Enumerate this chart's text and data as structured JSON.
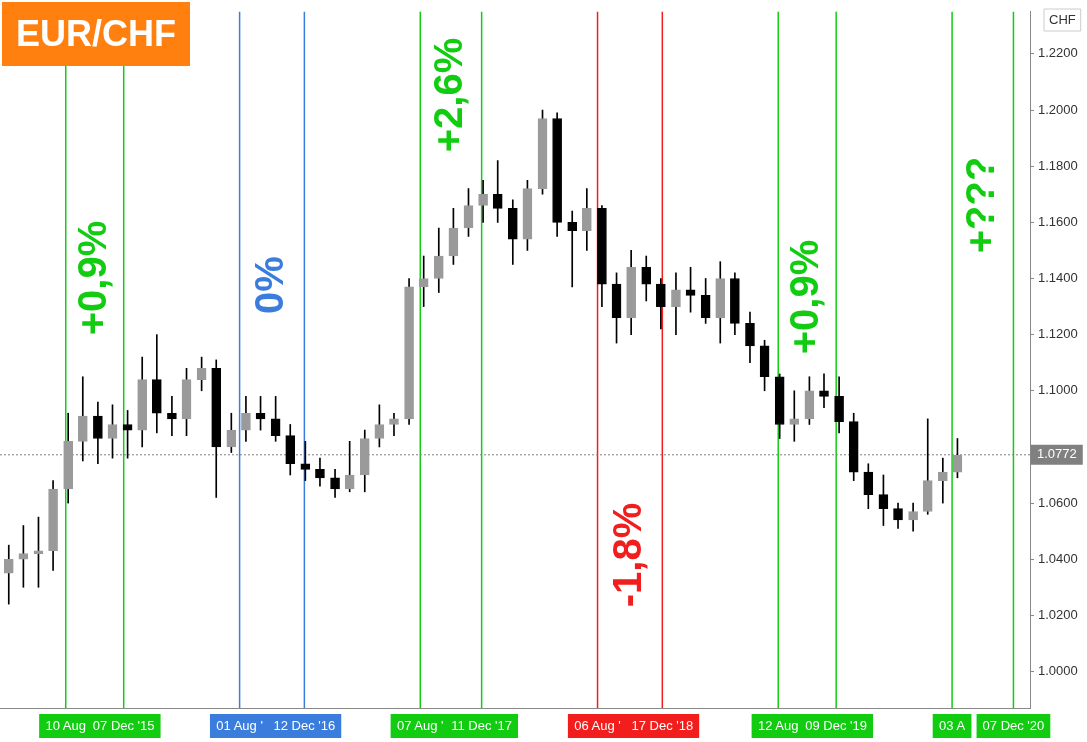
{
  "chart_data": {
    "type": "candlestick",
    "title": "EUR/CHF",
    "ylabel": "CHF",
    "color": "#000000",
    "colors": [
      "#9a9a9a",
      "#9a9a9a",
      "#9a9a9a",
      "#9a9a9a",
      "#9a9a9a",
      "#9a9a9a",
      "#000000",
      "#9a9a9a",
      "#000000",
      "#9a9a9a",
      "#000000",
      "#000000",
      "#9a9a9a",
      "#9a9a9a",
      "#000000",
      "#9a9a9a",
      "#9a9a9a",
      "#000000",
      "#000000",
      "#000000",
      "#000000",
      "#000000",
      "#000000",
      "#9a9a9a",
      "#9a9a9a",
      "#9a9a9a",
      "#9a9a9a",
      "#9a9a9a",
      "#9a9a9a",
      "#9a9a9a",
      "#9a9a9a",
      "#9a9a9a",
      "#9a9a9a",
      "#000000",
      "#000000",
      "#9a9a9a",
      "#9a9a9a",
      "#000000",
      "#000000",
      "#9a9a9a",
      "#000000",
      "#000000",
      "#9a9a9a",
      "#000000",
      "#000000",
      "#9a9a9a",
      "#000000",
      "#000000",
      "#9a9a9a",
      "#000000",
      "#000000",
      "#000000",
      "#000000",
      "#9a9a9a",
      "#9a9a9a",
      "#000000",
      "#000000",
      "#000000",
      "#000000",
      "#000000",
      "#000000",
      "#9a9a9a",
      "#9a9a9a",
      "#9a9a9a",
      "#9a9a9a"
    ],
    "x": [
      "2015-04-15",
      "2015-05-15",
      "2015-06-15",
      "2015-07-15",
      "2015-08-15",
      "2015-09-14",
      "2015-10-15",
      "2015-11-14",
      "2015-12-15",
      "2016-01-14",
      "2016-02-13",
      "2016-03-15",
      "2016-04-14",
      "2016-05-15",
      "2016-06-14",
      "2016-07-15",
      "2016-08-14",
      "2016-09-13",
      "2016-10-14",
      "2016-11-13",
      "2016-12-14",
      "2017-01-13",
      "2017-02-13",
      "2017-03-15",
      "2017-04-15",
      "2017-05-15",
      "2017-06-14",
      "2017-07-15",
      "2017-08-14",
      "2017-09-14",
      "2017-10-14",
      "2017-11-14",
      "2017-12-14",
      "2018-01-13",
      "2018-02-13",
      "2018-03-15",
      "2018-04-15",
      "2018-05-15",
      "2018-06-15",
      "2018-07-15",
      "2018-08-15",
      "2018-09-14",
      "2018-10-14",
      "2018-11-14",
      "2018-12-14",
      "2019-01-14",
      "2019-02-13",
      "2019-03-16",
      "2019-04-15",
      "2019-05-15",
      "2019-06-15",
      "2019-07-15",
      "2019-08-15",
      "2019-09-14",
      "2019-10-15",
      "2019-11-14",
      "2019-12-15",
      "2020-01-14",
      "2020-02-13",
      "2020-03-15",
      "2020-04-14",
      "2020-05-15",
      "2020-06-14",
      "2020-07-15",
      "2020-08-14"
    ],
    "ohlc": [
      [
        1.035,
        1.045,
        1.024,
        1.04
      ],
      [
        1.04,
        1.052,
        1.03,
        1.042
      ],
      [
        1.042,
        1.055,
        1.03,
        1.043
      ],
      [
        1.043,
        1.068,
        1.036,
        1.065
      ],
      [
        1.065,
        1.092,
        1.06,
        1.082
      ],
      [
        1.082,
        1.105,
        1.075,
        1.091
      ],
      [
        1.091,
        1.096,
        1.074,
        1.083
      ],
      [
        1.083,
        1.095,
        1.076,
        1.088
      ],
      [
        1.088,
        1.093,
        1.076,
        1.086
      ],
      [
        1.086,
        1.112,
        1.08,
        1.104
      ],
      [
        1.104,
        1.12,
        1.085,
        1.092
      ],
      [
        1.092,
        1.098,
        1.084,
        1.09
      ],
      [
        1.09,
        1.108,
        1.084,
        1.104
      ],
      [
        1.104,
        1.112,
        1.1,
        1.108
      ],
      [
        1.108,
        1.111,
        1.062,
        1.08
      ],
      [
        1.08,
        1.092,
        1.078,
        1.086
      ],
      [
        1.086,
        1.098,
        1.082,
        1.092
      ],
      [
        1.092,
        1.098,
        1.086,
        1.09
      ],
      [
        1.09,
        1.098,
        1.082,
        1.084
      ],
      [
        1.084,
        1.088,
        1.07,
        1.074
      ],
      [
        1.074,
        1.082,
        1.068,
        1.072
      ],
      [
        1.072,
        1.076,
        1.066,
        1.069
      ],
      [
        1.069,
        1.072,
        1.062,
        1.065
      ],
      [
        1.065,
        1.082,
        1.064,
        1.07
      ],
      [
        1.07,
        1.086,
        1.064,
        1.083
      ],
      [
        1.083,
        1.095,
        1.08,
        1.088
      ],
      [
        1.088,
        1.092,
        1.084,
        1.09
      ],
      [
        1.09,
        1.14,
        1.088,
        1.137
      ],
      [
        1.137,
        1.148,
        1.13,
        1.14
      ],
      [
        1.14,
        1.158,
        1.135,
        1.148
      ],
      [
        1.148,
        1.165,
        1.145,
        1.158
      ],
      [
        1.158,
        1.172,
        1.155,
        1.166
      ],
      [
        1.166,
        1.175,
        1.16,
        1.17
      ],
      [
        1.17,
        1.182,
        1.16,
        1.165
      ],
      [
        1.165,
        1.168,
        1.145,
        1.154
      ],
      [
        1.154,
        1.175,
        1.15,
        1.172
      ],
      [
        1.172,
        1.2,
        1.17,
        1.197
      ],
      [
        1.197,
        1.199,
        1.155,
        1.16
      ],
      [
        1.16,
        1.164,
        1.137,
        1.157
      ],
      [
        1.157,
        1.172,
        1.15,
        1.165
      ],
      [
        1.165,
        1.166,
        1.13,
        1.138
      ],
      [
        1.138,
        1.142,
        1.117,
        1.126
      ],
      [
        1.126,
        1.15,
        1.12,
        1.144
      ],
      [
        1.144,
        1.148,
        1.132,
        1.138
      ],
      [
        1.138,
        1.14,
        1.122,
        1.13
      ],
      [
        1.13,
        1.142,
        1.12,
        1.136
      ],
      [
        1.136,
        1.144,
        1.128,
        1.134
      ],
      [
        1.134,
        1.14,
        1.124,
        1.126
      ],
      [
        1.126,
        1.146,
        1.117,
        1.14
      ],
      [
        1.14,
        1.142,
        1.12,
        1.124
      ],
      [
        1.124,
        1.128,
        1.11,
        1.116
      ],
      [
        1.116,
        1.118,
        1.1,
        1.105
      ],
      [
        1.105,
        1.106,
        1.083,
        1.088
      ],
      [
        1.088,
        1.1,
        1.082,
        1.09
      ],
      [
        1.09,
        1.105,
        1.088,
        1.1
      ],
      [
        1.1,
        1.106,
        1.094,
        1.098
      ],
      [
        1.098,
        1.105,
        1.085,
        1.089
      ],
      [
        1.089,
        1.092,
        1.068,
        1.071
      ],
      [
        1.071,
        1.074,
        1.058,
        1.063
      ],
      [
        1.063,
        1.07,
        1.052,
        1.058
      ],
      [
        1.058,
        1.06,
        1.051,
        1.054
      ],
      [
        1.054,
        1.06,
        1.05,
        1.057
      ],
      [
        1.057,
        1.09,
        1.056,
        1.068
      ],
      [
        1.068,
        1.076,
        1.06,
        1.071
      ],
      [
        1.071,
        1.083,
        1.069,
        1.077
      ]
    ],
    "xlim": [
      "2015-03-28",
      "2021-01-10"
    ],
    "ylim": [
      0.987,
      1.235
    ],
    "yticks": [
      {
        "value": 1.0,
        "label": "1.0000"
      },
      {
        "value": 1.02,
        "label": "1.0200"
      },
      {
        "value": 1.04,
        "label": "1.0400"
      },
      {
        "value": 1.06,
        "label": "1.0600"
      },
      {
        "value": 1.08,
        "label": null
      },
      {
        "value": 1.1,
        "label": "1.1000"
      },
      {
        "value": 1.12,
        "label": "1.1200"
      },
      {
        "value": 1.14,
        "label": "1.1400"
      },
      {
        "value": 1.16,
        "label": "1.1600"
      },
      {
        "value": 1.18,
        "label": "1.1800"
      },
      {
        "value": 1.2,
        "label": "1.2000"
      },
      {
        "value": 1.22,
        "label": "1.2200"
      }
    ],
    "xticks": [
      {
        "value": "2015-08-10",
        "label": "10 Aug"
      },
      {
        "value": "2015-12-07",
        "label": "07 Dec '15"
      },
      {
        "value": "2016-08-01",
        "label": "01 Aug '"
      },
      {
        "value": "2016-12-12",
        "label": "12 Dec '16"
      },
      {
        "value": "2017-08-07",
        "label": "07 Aug '"
      },
      {
        "value": "2017-12-11",
        "label": "11 Dec '17"
      },
      {
        "value": "2018-08-06",
        "label": "06 Aug '"
      },
      {
        "value": "2018-12-17",
        "label": "17 Dec '18"
      },
      {
        "value": "2019-08-12",
        "label": "12 Aug"
      },
      {
        "value": "2019-12-09",
        "label": "09 Dec '19"
      },
      {
        "value": "2020-08-03",
        "label": "03 A"
      },
      {
        "value": "2020-12-07",
        "label": "07 Dec '20"
      }
    ],
    "grid": false,
    "legend": false,
    "ref_lines": [
      {
        "axis": "x",
        "value": "2015-08-10",
        "color": "#12cc12"
      },
      {
        "axis": "x",
        "value": "2015-12-07",
        "color": "#12cc12"
      },
      {
        "axis": "x",
        "value": "2016-08-01",
        "color": "#3b7ddd"
      },
      {
        "axis": "x",
        "value": "2016-12-12",
        "color": "#3b7ddd"
      },
      {
        "axis": "x",
        "value": "2017-08-07",
        "color": "#12cc12"
      },
      {
        "axis": "x",
        "value": "2017-12-11",
        "color": "#12cc12"
      },
      {
        "axis": "x",
        "value": "2018-08-06",
        "color": "#f21d1d"
      },
      {
        "axis": "x",
        "value": "2018-12-17",
        "color": "#f21d1d"
      },
      {
        "axis": "x",
        "value": "2019-08-12",
        "color": "#12cc12"
      },
      {
        "axis": "x",
        "value": "2019-12-09",
        "color": "#12cc12"
      },
      {
        "axis": "x",
        "value": "2020-08-03",
        "color": "#12cc12"
      },
      {
        "axis": "x",
        "value": "2020-12-07",
        "color": "#12cc12"
      },
      {
        "axis": "y",
        "value": 1.0772,
        "label": "1.0772",
        "color": "#808080",
        "line_style": "dotted"
      }
    ],
    "annotations": [
      "+0,9%",
      "0%",
      "+2,6%",
      "-1,8%",
      "+0,9%",
      "+???"
    ]
  }
}
